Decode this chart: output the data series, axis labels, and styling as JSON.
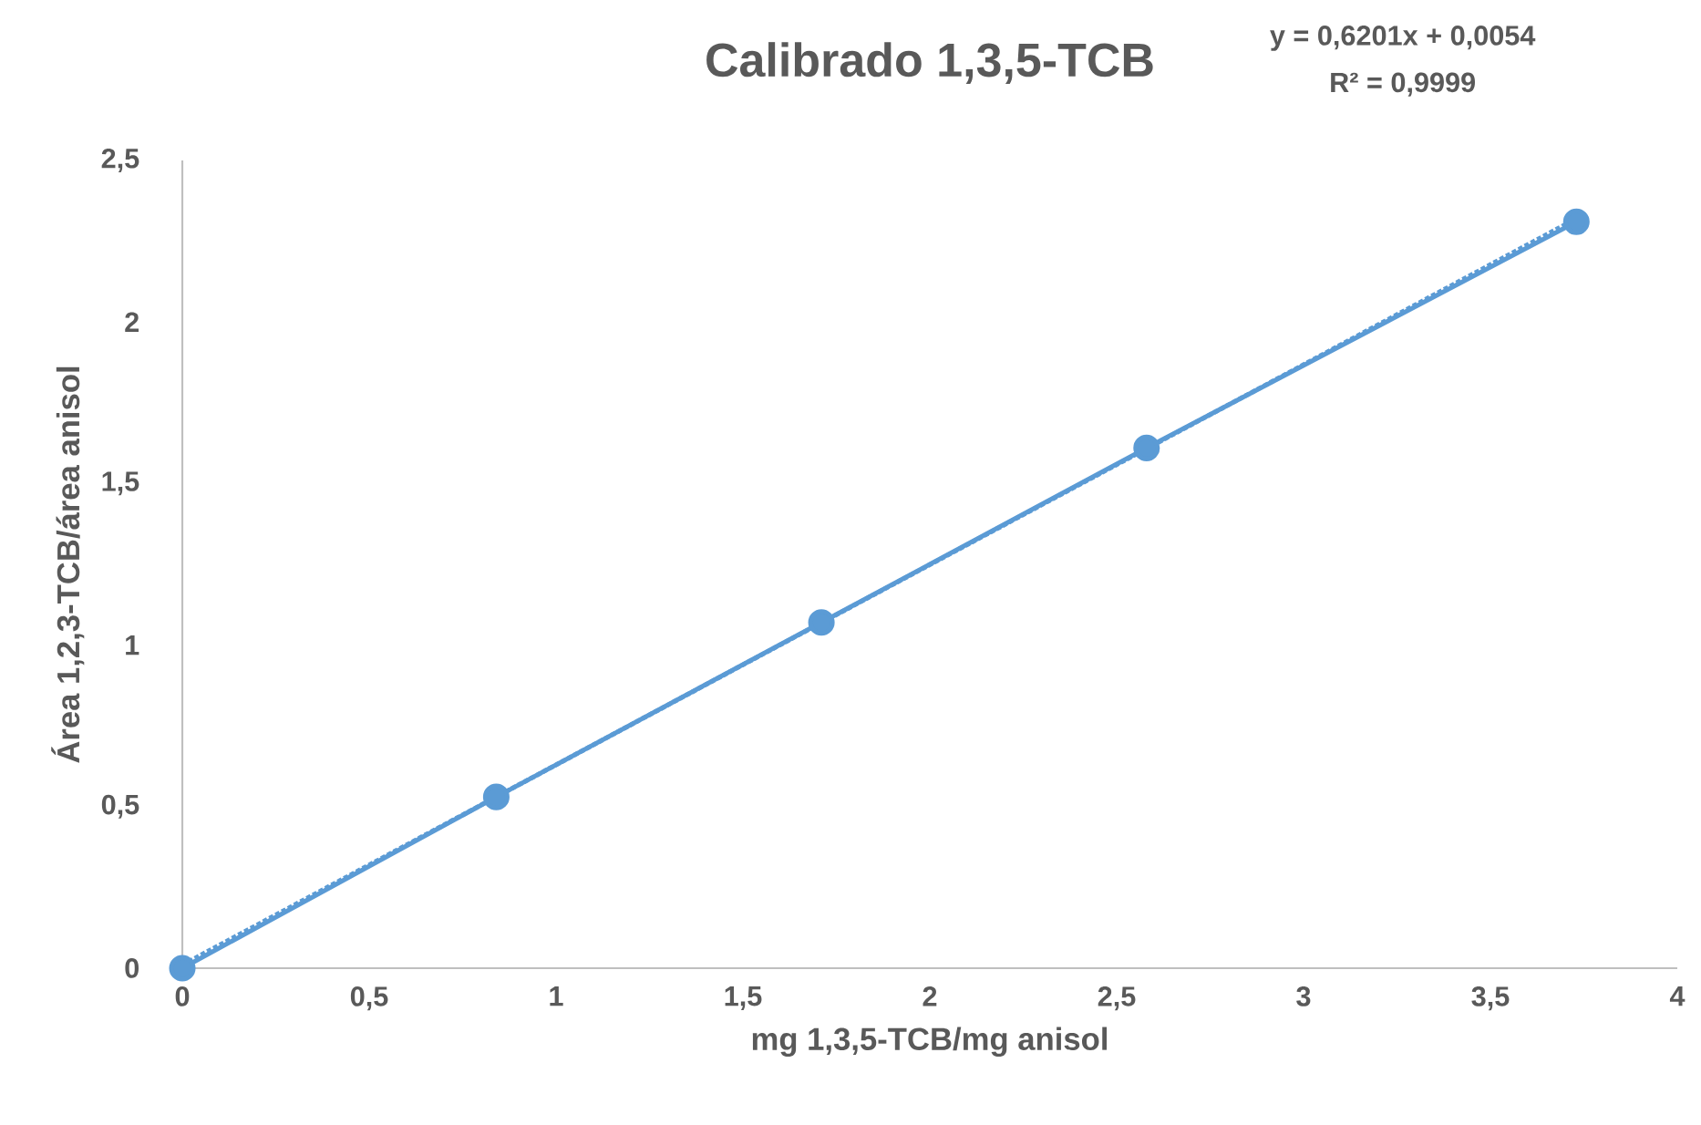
{
  "chart_data": {
    "type": "line",
    "title": "Calibrado 1,3,5-TCB",
    "xlabel": "mg 1,3,5-TCB/mg anisol",
    "ylabel": "Área 1,2,3-TCB/área anisol",
    "xlim": [
      0,
      4
    ],
    "ylim": [
      0,
      2.5
    ],
    "xticks": [
      0,
      {
        "value": 0.5,
        "label": "0,5"
      },
      1,
      {
        "value": 1.5,
        "label": "1,5"
      },
      2,
      {
        "value": 2.5,
        "label": "2,5"
      },
      3,
      {
        "value": 3.5,
        "label": "3,5"
      },
      4
    ],
    "yticks": [
      0,
      {
        "value": 0.5,
        "label": "0,5"
      },
      1,
      {
        "value": 1.5,
        "label": "1,5"
      },
      2,
      {
        "value": 2.5,
        "label": "2,5"
      }
    ],
    "series": [
      {
        "marker": "circle",
        "line_style": "solid",
        "color": "#5b9bd5",
        "x": [
          0,
          0.84,
          1.71,
          2.58,
          3.73
        ],
        "values": [
          0,
          0.53,
          1.07,
          1.61,
          2.31
        ]
      },
      {
        "type": "line",
        "marker": "none",
        "line_style": "dotted",
        "color": "#5b9bd5",
        "x": [
          0,
          3.73
        ],
        "values": [
          0.01,
          2.32
        ]
      }
    ],
    "annotations": [
      "y = 0,6201x + 0,0054",
      "R² = 0,9999"
    ]
  }
}
